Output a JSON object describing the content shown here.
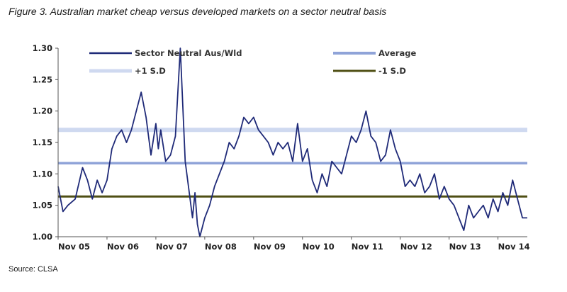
{
  "figure": {
    "title": "Figure 3.  Australian market cheap versus developed markets on a sector neutral basis",
    "source": "Source: CLSA"
  },
  "colors": {
    "series": "#1f2a78",
    "average": "#8fa3d8",
    "plus1sd": "#cfd9f0",
    "minus1sd": "#4f4f14",
    "axis": "#555555"
  },
  "chart_data": {
    "type": "line",
    "ylim": [
      1.0,
      1.3
    ],
    "xlim": [
      0,
      9.6
    ],
    "yticks": [
      "1.00",
      "1.05",
      "1.10",
      "1.15",
      "1.20",
      "1.25",
      "1.30"
    ],
    "xticks": [
      "Nov 05",
      "Nov 06",
      "Nov 07",
      "Nov 08",
      "Nov 09",
      "Nov 10",
      "Nov 11",
      "Nov 12",
      "Nov 13",
      "Nov 14"
    ],
    "grid": false,
    "legend_position": "top",
    "series": [
      {
        "name": "Sector Neutral Aus/Wld",
        "x": [
          0.0,
          0.1,
          0.2,
          0.35,
          0.5,
          0.6,
          0.7,
          0.8,
          0.9,
          1.0,
          1.1,
          1.2,
          1.3,
          1.4,
          1.5,
          1.6,
          1.7,
          1.8,
          1.9,
          2.0,
          2.05,
          2.1,
          2.2,
          2.3,
          2.4,
          2.5,
          2.6,
          2.7,
          2.75,
          2.8,
          2.85,
          2.9,
          3.0,
          3.1,
          3.2,
          3.3,
          3.4,
          3.5,
          3.6,
          3.7,
          3.8,
          3.9,
          4.0,
          4.1,
          4.2,
          4.3,
          4.4,
          4.5,
          4.6,
          4.7,
          4.8,
          4.9,
          5.0,
          5.1,
          5.2,
          5.3,
          5.4,
          5.5,
          5.6,
          5.7,
          5.8,
          5.9,
          6.0,
          6.1,
          6.2,
          6.3,
          6.4,
          6.5,
          6.6,
          6.7,
          6.8,
          6.9,
          7.0,
          7.1,
          7.2,
          7.3,
          7.4,
          7.5,
          7.6,
          7.7,
          7.8,
          7.9,
          8.0,
          8.1,
          8.2,
          8.3,
          8.4,
          8.5,
          8.6,
          8.7,
          8.8,
          8.9,
          9.0,
          9.1,
          9.2,
          9.3,
          9.4,
          9.5,
          9.6
        ],
        "values": [
          1.08,
          1.04,
          1.05,
          1.06,
          1.11,
          1.09,
          1.06,
          1.09,
          1.07,
          1.09,
          1.14,
          1.16,
          1.17,
          1.15,
          1.17,
          1.2,
          1.23,
          1.19,
          1.13,
          1.18,
          1.14,
          1.17,
          1.12,
          1.13,
          1.16,
          1.3,
          1.12,
          1.06,
          1.03,
          1.07,
          1.02,
          1.0,
          1.03,
          1.05,
          1.08,
          1.1,
          1.12,
          1.15,
          1.14,
          1.16,
          1.19,
          1.18,
          1.19,
          1.17,
          1.16,
          1.15,
          1.13,
          1.15,
          1.14,
          1.15,
          1.12,
          1.18,
          1.12,
          1.14,
          1.09,
          1.07,
          1.1,
          1.08,
          1.12,
          1.11,
          1.1,
          1.13,
          1.16,
          1.15,
          1.17,
          1.2,
          1.16,
          1.15,
          1.12,
          1.13,
          1.17,
          1.14,
          1.12,
          1.08,
          1.09,
          1.08,
          1.1,
          1.07,
          1.08,
          1.1,
          1.06,
          1.08,
          1.06,
          1.05,
          1.03,
          1.01,
          1.05,
          1.03,
          1.04,
          1.05,
          1.03,
          1.06,
          1.04,
          1.07,
          1.05,
          1.09,
          1.06,
          1.03,
          1.03
        ]
      },
      {
        "name": "Average",
        "value": 1.117
      },
      {
        "name": "+1 S.D",
        "value": 1.17
      },
      {
        "name": "-1 S.D",
        "value": 1.064
      }
    ]
  }
}
